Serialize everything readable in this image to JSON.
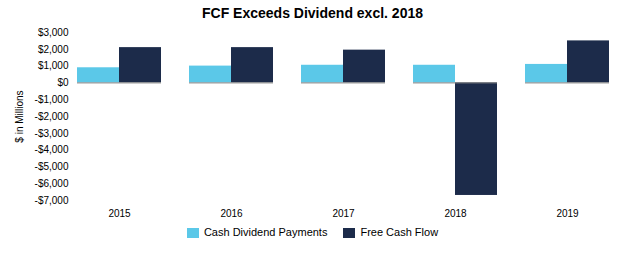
{
  "chart_data": {
    "type": "bar",
    "title": "FCF Exceeds Dividend excl. 2018",
    "categories": [
      "2015",
      "2016",
      "2017",
      "2018",
      "2019"
    ],
    "series": [
      {
        "name": "Cash Dividend Payments",
        "color": "#5BC8E8",
        "values": [
          900,
          1000,
          1050,
          1050,
          1100
        ]
      },
      {
        "name": "Free Cash Flow",
        "color": "#1C2B4A",
        "values": [
          2100,
          2100,
          1950,
          -6700,
          2500
        ]
      }
    ],
    "ylabel": "$ in Millions",
    "ylim": [
      -7000,
      3000
    ],
    "yticks": [
      {
        "value": 3000,
        "label": "$3,000"
      },
      {
        "value": 2000,
        "label": "$2,000"
      },
      {
        "value": 1000,
        "label": "$1,000"
      },
      {
        "value": 0,
        "label": "$0"
      },
      {
        "value": -1000,
        "label": "-$1,000"
      },
      {
        "value": -2000,
        "label": "-$2,000"
      },
      {
        "value": -3000,
        "label": "-$3,000"
      },
      {
        "value": -4000,
        "label": "-$4,000"
      },
      {
        "value": -5000,
        "label": "-$5,000"
      },
      {
        "value": -6000,
        "label": "-$6,000"
      },
      {
        "value": -7000,
        "label": "-$7,000"
      }
    ],
    "grid": false,
    "legend": "bottom"
  }
}
